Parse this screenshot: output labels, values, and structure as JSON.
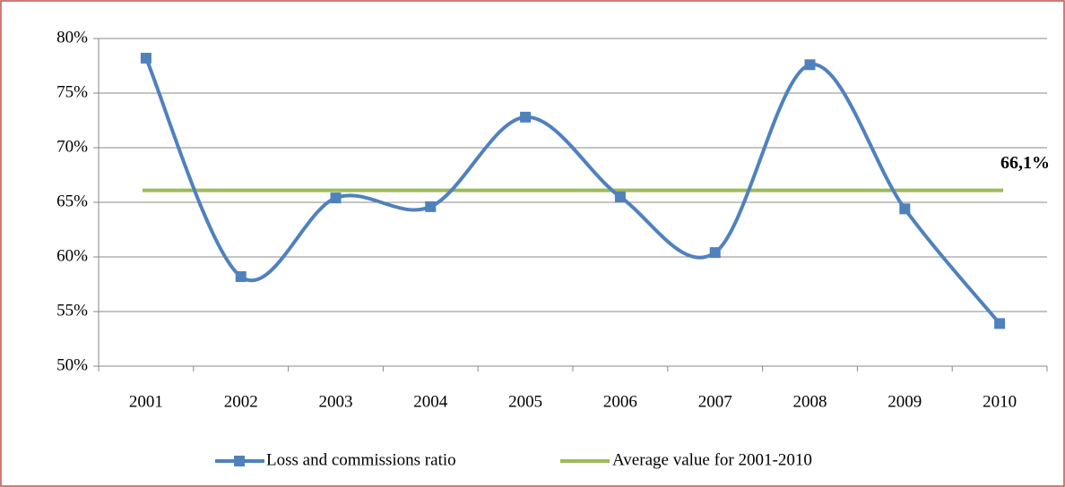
{
  "chart_data": {
    "type": "line",
    "categories": [
      "2001",
      "2002",
      "2003",
      "2004",
      "2005",
      "2006",
      "2007",
      "2008",
      "2009",
      "2010"
    ],
    "series": [
      {
        "name": "Loss and commissions ratio",
        "color": "#4f81bd",
        "values": [
          78.2,
          58.2,
          65.4,
          64.6,
          72.8,
          65.5,
          60.4,
          77.6,
          64.4,
          53.9
        ]
      }
    ],
    "average": {
      "name": "Average value for 2001-2010",
      "color": "#9bbb59",
      "value": 66.1,
      "value_label": "66,1%"
    },
    "ylim": [
      50,
      80
    ],
    "yticks": [
      {
        "value": 50,
        "label": "50%"
      },
      {
        "value": 55,
        "label": "55%"
      },
      {
        "value": 60,
        "label": "60%"
      },
      {
        "value": 65,
        "label": "65%"
      },
      {
        "value": 70,
        "label": "70%"
      },
      {
        "value": 75,
        "label": "75%"
      },
      {
        "value": 80,
        "label": "80%"
      }
    ],
    "grid": true,
    "legend": "bottom"
  }
}
